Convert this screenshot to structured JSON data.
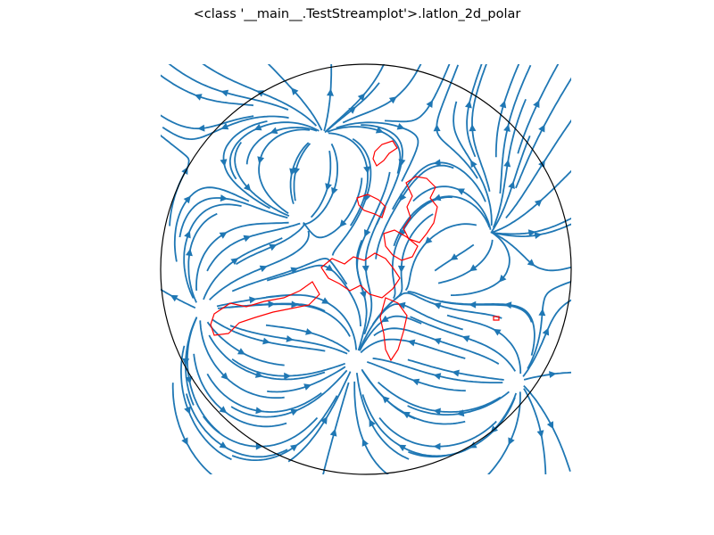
{
  "page_title": "<class '__main__.TestStreamplot'>.latlon_2d_polar",
  "chart_data": {
    "type": "streamplot",
    "projection": "polar stereographic",
    "title": "<class '__main__.TestStreamplot'>.latlon_2d_polar",
    "xlabel": "",
    "ylabel": "",
    "grid": false,
    "stream_color": "#1f77b4",
    "coastline_color": "#ff0000",
    "boundary_color": "#000000",
    "vector_field": {
      "sources": [
        [
          0.56,
          0.16
        ],
        [
          -0.22,
          0.62
        ],
        [
          0.72,
          -0.55
        ],
        [
          -0.78,
          -0.2
        ]
      ],
      "sinks": [
        [
          -0.32,
          0.28
        ],
        [
          -0.05,
          -0.45
        ],
        [
          0.3,
          -0.05
        ]
      ],
      "background_flow": [
        0.05,
        0.1
      ]
    }
  }
}
